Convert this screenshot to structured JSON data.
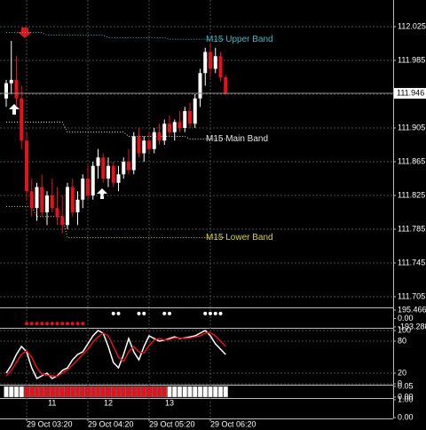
{
  "chart_data": [
    {
      "type": "candlestick",
      "categories": [
        null,
        null,
        null,
        null,
        "29 Oct 03:20",
        null,
        null,
        null,
        null,
        null,
        null,
        null,
        null,
        null,
        null,
        null,
        "29 Oct 04:20",
        null,
        null,
        null,
        null,
        null,
        null,
        null,
        null,
        null,
        null,
        null,
        "29 Oct 05:20",
        null,
        null,
        null,
        null,
        null,
        null,
        null,
        null,
        null,
        null,
        null,
        "29 Oct 06:20",
        null,
        null,
        null
      ],
      "open": [
        111.94,
        111.958,
        111.962,
        111.94,
        111.89,
        111.83,
        111.81,
        111.835,
        111.805,
        111.825,
        111.81,
        111.8,
        111.79,
        111.835,
        111.805,
        111.82,
        111.845,
        111.825,
        111.86,
        111.87,
        111.845,
        111.86,
        111.84,
        111.85,
        111.865,
        111.855,
        111.895,
        111.875,
        111.89,
        111.88,
        111.9,
        111.89,
        111.91,
        111.9,
        111.912,
        111.905,
        111.925,
        111.91,
        111.94,
        111.97,
        111.995,
        111.975,
        111.99,
        111.965
      ],
      "high": [
        111.962,
        112.008,
        111.99,
        111.955,
        111.9,
        111.845,
        111.84,
        111.85,
        111.83,
        111.845,
        111.835,
        111.825,
        111.84,
        111.845,
        111.83,
        111.85,
        111.86,
        111.865,
        111.88,
        111.875,
        111.87,
        111.865,
        111.86,
        111.87,
        111.88,
        111.9,
        111.905,
        111.895,
        111.9,
        111.905,
        111.91,
        111.915,
        111.92,
        111.915,
        111.925,
        111.93,
        111.935,
        111.945,
        111.975,
        112.0,
        112.005,
        112.0,
        111.995,
        111.968
      ],
      "low": [
        111.93,
        111.945,
        111.93,
        111.88,
        111.82,
        111.8,
        111.795,
        111.8,
        111.79,
        111.805,
        111.79,
        111.78,
        111.785,
        111.8,
        111.79,
        111.81,
        111.82,
        111.82,
        111.845,
        111.84,
        111.835,
        111.835,
        111.83,
        111.845,
        111.85,
        111.85,
        111.87,
        111.865,
        111.875,
        111.875,
        111.885,
        111.885,
        111.895,
        111.89,
        111.9,
        111.9,
        111.905,
        111.905,
        111.93,
        111.955,
        111.965,
        111.97,
        111.96,
        111.944
      ],
      "close": [
        111.958,
        111.962,
        111.94,
        111.89,
        111.83,
        111.81,
        111.835,
        111.805,
        111.825,
        111.81,
        111.8,
        111.79,
        111.835,
        111.805,
        111.82,
        111.845,
        111.825,
        111.86,
        111.87,
        111.845,
        111.86,
        111.84,
        111.85,
        111.865,
        111.855,
        111.895,
        111.875,
        111.89,
        111.88,
        111.9,
        111.89,
        111.91,
        111.9,
        111.912,
        111.905,
        111.925,
        111.91,
        111.94,
        111.97,
        111.995,
        111.975,
        111.99,
        111.965,
        111.946
      ],
      "up_color": "#ffffff",
      "down_color": "#e8101a",
      "bands": [
        {
          "name": "M15 Upper Band",
          "color": "#3fb8c4",
          "values": [
            112.018,
            112.018,
            112.018,
            112.018,
            112.018,
            112.018,
            112.018,
            112.018,
            112.015,
            112.015,
            112.015,
            112.015,
            112.015,
            112.015,
            112.015,
            112.015,
            112.015,
            112.015,
            112.015,
            112.015,
            112.012,
            112.012,
            112.012,
            112.012,
            112.012,
            112.012,
            112.012,
            112.012,
            112.012,
            112.012,
            112.012,
            112.012,
            112.01,
            112.01,
            112.01,
            112.01,
            112.01,
            112.01,
            112.01,
            112.01,
            112.01,
            112.01,
            112.01,
            112.01
          ]
        },
        {
          "name": "M15 Main Band",
          "color": "#e6e6e6",
          "values": [
            111.912,
            111.912,
            111.912,
            111.912,
            111.912,
            111.912,
            111.912,
            111.912,
            111.912,
            111.912,
            111.912,
            111.912,
            111.9,
            111.9,
            111.9,
            111.9,
            111.9,
            111.9,
            111.9,
            111.9,
            111.9,
            111.9,
            111.9,
            111.9,
            111.895,
            111.895,
            111.895,
            111.895,
            111.895,
            111.895,
            111.895,
            111.895,
            111.895,
            111.895,
            111.895,
            111.895,
            111.892,
            111.892,
            111.892,
            111.892,
            111.892,
            111.892,
            111.892,
            111.892
          ]
        },
        {
          "name": "M15 Lower Band",
          "color": "#d8d04a",
          "values": [
            111.812,
            111.812,
            111.812,
            111.812,
            111.812,
            111.812,
            111.8,
            111.8,
            111.8,
            111.8,
            111.8,
            111.8,
            111.775,
            111.775,
            111.775,
            111.775,
            111.775,
            111.775,
            111.775,
            111.775,
            111.775,
            111.775,
            111.775,
            111.775,
            111.775,
            111.775,
            111.775,
            111.775,
            111.775,
            111.775,
            111.775,
            111.775,
            111.775,
            111.775,
            111.775,
            111.775,
            111.775,
            111.775,
            111.775,
            111.775,
            111.775,
            111.775,
            111.775,
            111.775
          ]
        }
      ],
      "current_price": 111.946,
      "ylim": [
        111.6934,
        112.0566
      ],
      "yticks": [
        112.025,
        111.985,
        111.945,
        111.905,
        111.865,
        111.825,
        111.785,
        111.745,
        111.705
      ],
      "grid": true
    },
    {
      "type": "dots",
      "ylim": [
        -193.288,
        195.466
      ],
      "yticks": [
        195.466,
        {
          "value": 0,
          "label": "0.00"
        },
        -193.288
      ],
      "series": [
        {
          "color": "#ffffff",
          "x": [
            21,
            22,
            26,
            27,
            31,
            32,
            39,
            40,
            41,
            42
          ],
          "row": 0.6
        },
        {
          "color": "#e8101a",
          "x": [
            4,
            5,
            6,
            7,
            8,
            9,
            10,
            11,
            12,
            13,
            14,
            15
          ],
          "row": -0.6
        }
      ]
    },
    {
      "type": "line",
      "ylim": [
        0,
        100
      ],
      "yticks": [
        100,
        80,
        20,
        0
      ],
      "series": [
        {
          "color": "#ffffff",
          "values": [
            20,
            35,
            55,
            70,
            60,
            30,
            10,
            15,
            20,
            10,
            15,
            25,
            30,
            45,
            55,
            60,
            75,
            90,
            100,
            95,
            70,
            40,
            30,
            55,
            85,
            60,
            45,
            70,
            90,
            85,
            80,
            82,
            85,
            88,
            85,
            86,
            88,
            90,
            95,
            100,
            90,
            75,
            65,
            55
          ]
        },
        {
          "color": "#e8101a",
          "values": [
            15,
            25,
            40,
            55,
            62,
            50,
            30,
            18,
            16,
            15,
            14,
            20,
            26,
            35,
            45,
            55,
            65,
            78,
            88,
            95,
            90,
            70,
            50,
            42,
            60,
            70,
            60,
            58,
            72,
            82,
            85,
            82,
            83,
            86,
            86,
            85,
            86,
            88,
            90,
            95,
            96,
            90,
            80,
            70
          ]
        }
      ]
    },
    {
      "type": "histogram",
      "ylim": [
        0,
        0.05
      ],
      "yticks": [
        {
          "value": 0.05,
          "label": "0.05"
        },
        {
          "value": 0,
          "label": "0.00"
        }
      ],
      "values": [
        0.05,
        0.05,
        0.05,
        0.05,
        0.05,
        0.05,
        0.05,
        0.05,
        0.05,
        0.05,
        0.05,
        0.05,
        0.05,
        0.05,
        0.05,
        0.05,
        0.05,
        0.05,
        0.05,
        0.05,
        0.05,
        0.05,
        0.05,
        0.05,
        0.05,
        0.05,
        0.05,
        0.05,
        0.05,
        0.05,
        0.05,
        0.05,
        0.05,
        0.05,
        0.05,
        0.05,
        0.05,
        0.05,
        0.05,
        0.05,
        0.05,
        0.05,
        0.05,
        0.05
      ],
      "colors": [
        "#ffffff",
        "#ffffff",
        "#ffffff",
        "#ffffff",
        "#e8101a",
        "#e8101a",
        "#e8101a",
        "#e8101a",
        "#e8101a",
        "#e8101a",
        "#e8101a",
        "#e8101a",
        "#e8101a",
        "#e8101a",
        "#e8101a",
        "#e8101a",
        "#e8101a",
        "#e8101a",
        "#e8101a",
        "#e8101a",
        "#e8101a",
        "#e8101a",
        "#e8101a",
        "#e8101a",
        "#e8101a",
        "#e8101a",
        "#e8101a",
        "#e8101a",
        "#e8101a",
        "#e8101a",
        "#e8101a",
        "#e8101a",
        "#ffffff",
        "#ffffff",
        "#ffffff",
        "#ffffff",
        "#ffffff",
        "#ffffff",
        "#ffffff",
        "#ffffff",
        "#ffffff",
        "#ffffff",
        "#ffffff",
        "#ffffff"
      ]
    },
    {
      "type": "labels",
      "ylim": [
        0,
        1
      ],
      "yticks": [
        {
          "value": 1,
          "label": "1.00"
        },
        {
          "value": 0,
          "label": "0.00"
        }
      ],
      "annotations": [
        {
          "text": "11",
          "x": 9
        },
        {
          "text": "12",
          "x": 20
        },
        {
          "text": "13",
          "x": 32
        }
      ]
    }
  ]
}
